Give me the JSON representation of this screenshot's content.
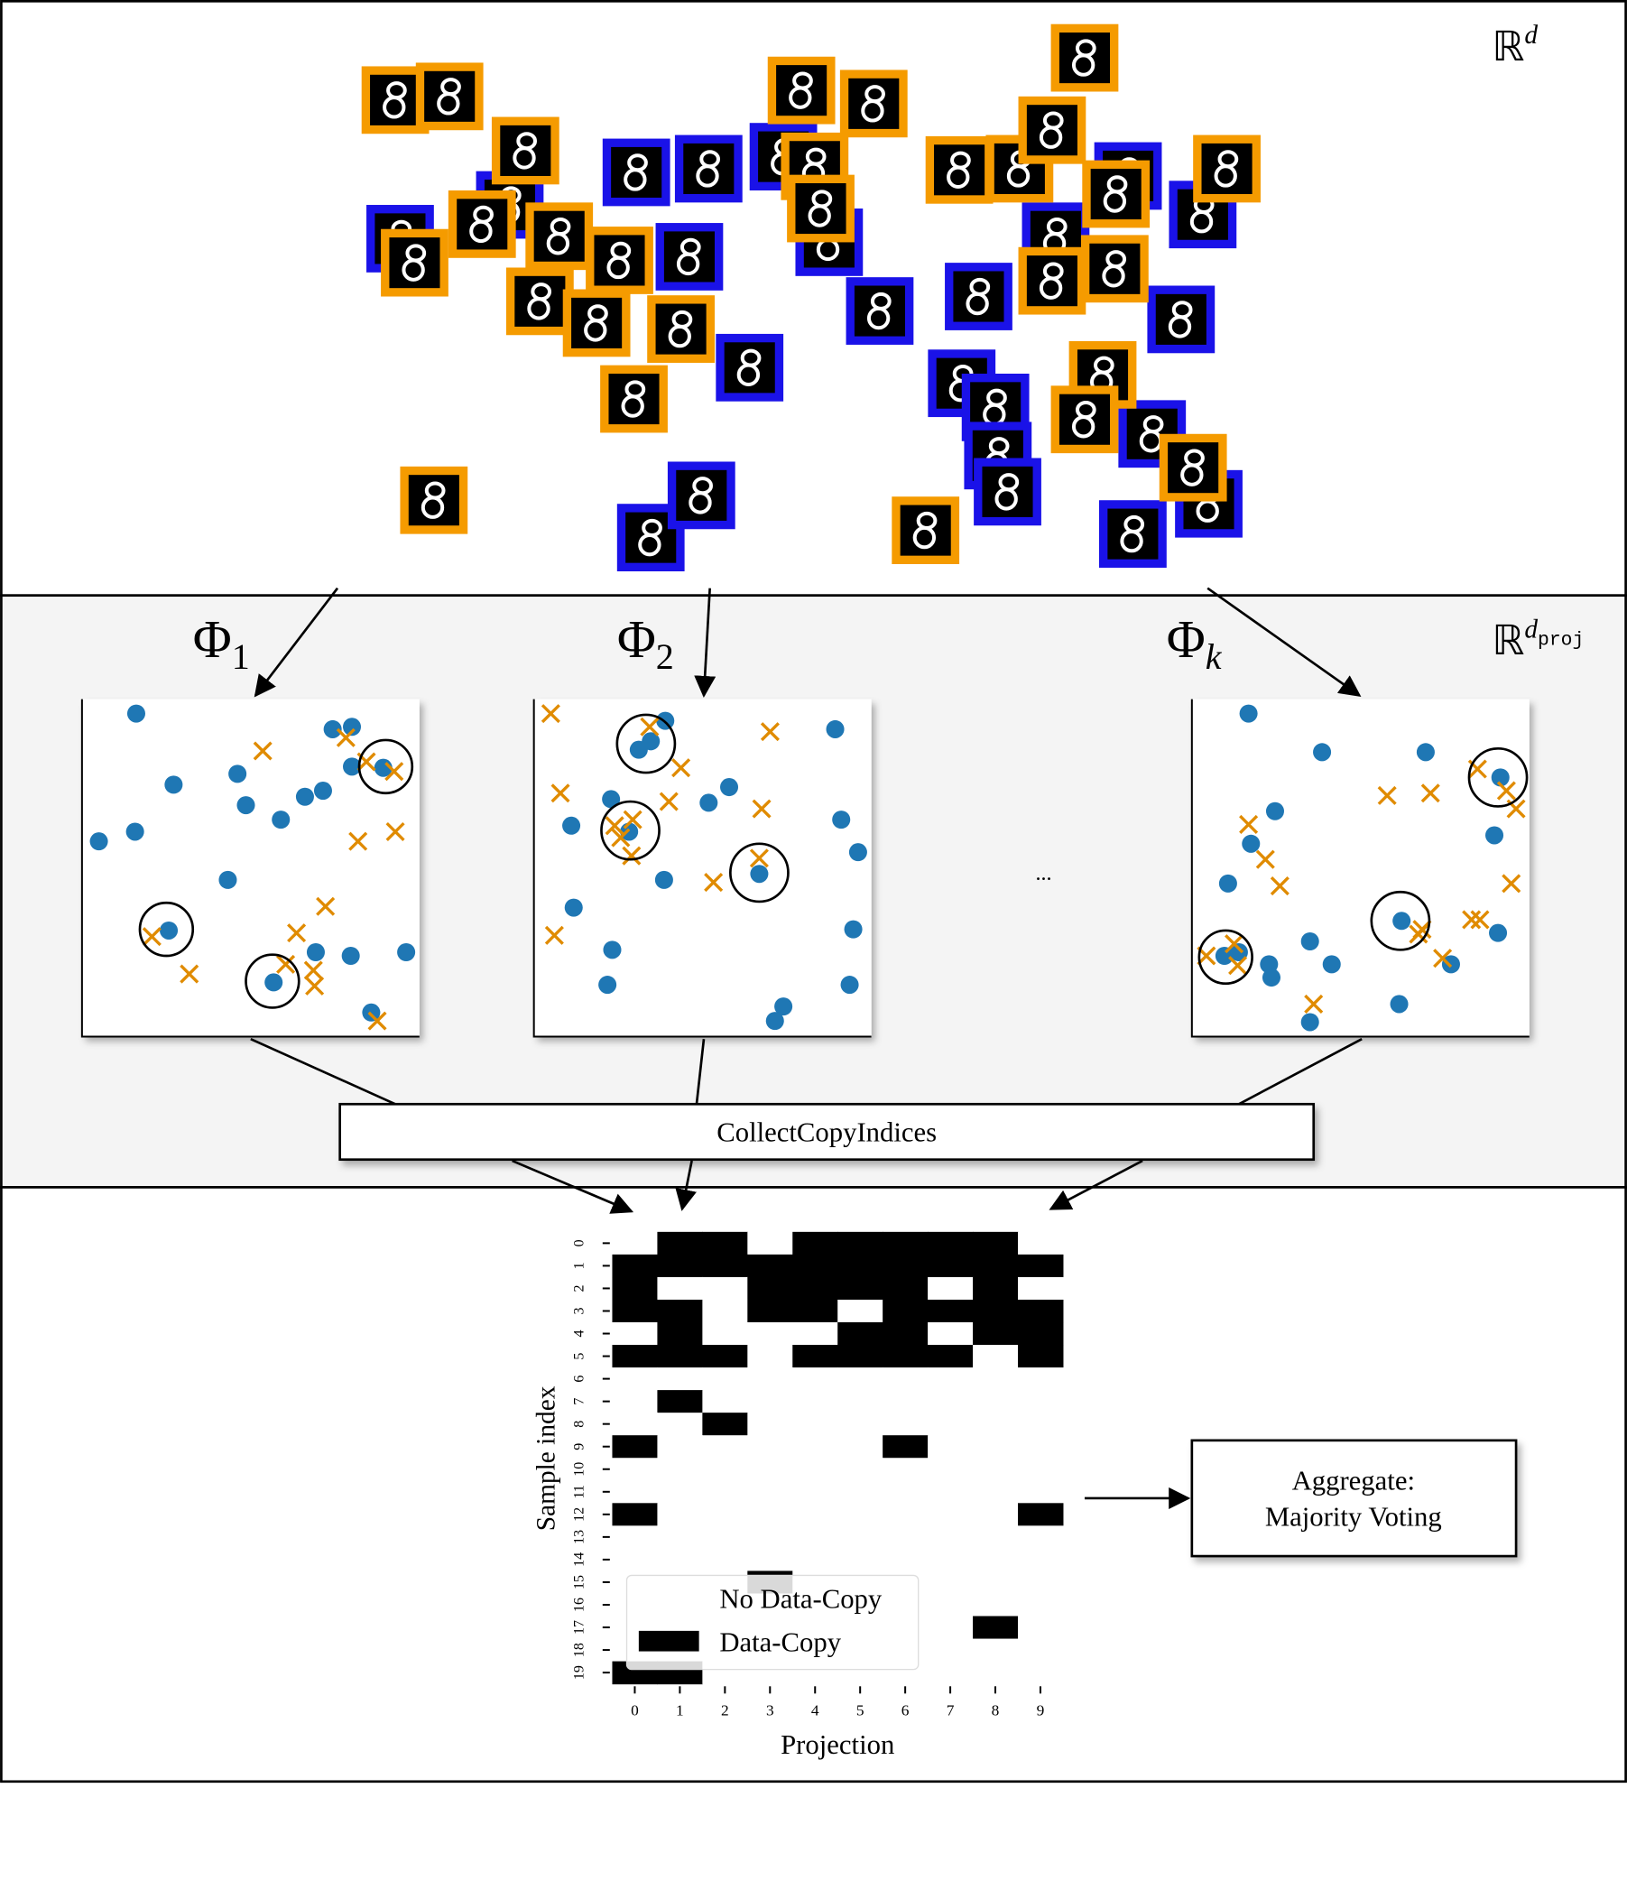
{
  "spaces": {
    "data_space": {
      "base": "ℝ",
      "sup": "d"
    },
    "proj_space": {
      "base": "ℝ",
      "sup": "d",
      "sub": "proj"
    }
  },
  "projections": [
    {
      "symbol": "Φ",
      "sub": "1"
    },
    {
      "symbol": "Φ",
      "sub": "2"
    },
    {
      "symbol": "Φ",
      "sub": "k"
    }
  ],
  "ellipsis": "...",
  "collect_box": "CollectCopyIndices",
  "heatmap": {
    "ylabel": "Sample index",
    "xlabel": "Projection",
    "xticks": [
      0,
      1,
      2,
      3,
      4,
      5,
      6,
      7,
      8,
      9
    ],
    "yticks": [
      0,
      1,
      2,
      3,
      4,
      5,
      6,
      7,
      8,
      9,
      10,
      11,
      12,
      13,
      14,
      15,
      16,
      17,
      18,
      19
    ],
    "matrix": [
      [
        0,
        1,
        1,
        0,
        1,
        1,
        1,
        1,
        1,
        0
      ],
      [
        1,
        1,
        1,
        1,
        1,
        1,
        1,
        1,
        1,
        1
      ],
      [
        1,
        0,
        0,
        1,
        1,
        1,
        1,
        0,
        1,
        0
      ],
      [
        1,
        1,
        0,
        1,
        1,
        0,
        1,
        1,
        1,
        1
      ],
      [
        0,
        1,
        0,
        0,
        0,
        1,
        1,
        0,
        1,
        1
      ],
      [
        1,
        1,
        1,
        0,
        1,
        1,
        1,
        1,
        0,
        1
      ],
      [
        0,
        0,
        0,
        0,
        0,
        0,
        0,
        0,
        0,
        0
      ],
      [
        0,
        1,
        0,
        0,
        0,
        0,
        0,
        0,
        0,
        0
      ],
      [
        0,
        0,
        1,
        0,
        0,
        0,
        0,
        0,
        0,
        0
      ],
      [
        1,
        0,
        0,
        0,
        0,
        0,
        1,
        0,
        0,
        0
      ],
      [
        0,
        0,
        0,
        0,
        0,
        0,
        0,
        0,
        0,
        0
      ],
      [
        0,
        0,
        0,
        0,
        0,
        0,
        0,
        0,
        0,
        0
      ],
      [
        1,
        0,
        0,
        0,
        0,
        0,
        0,
        0,
        0,
        1
      ],
      [
        0,
        0,
        0,
        0,
        0,
        0,
        0,
        0,
        0,
        0
      ],
      [
        0,
        0,
        0,
        0,
        0,
        0,
        0,
        0,
        0,
        0
      ],
      [
        0,
        0,
        0,
        1,
        0,
        0,
        0,
        0,
        0,
        0
      ],
      [
        0,
        0,
        0,
        0,
        0,
        0,
        0,
        0,
        0,
        0
      ],
      [
        0,
        0,
        0,
        0,
        0,
        0,
        0,
        0,
        1,
        0
      ],
      [
        0,
        0,
        0,
        0,
        0,
        0,
        0,
        0,
        0,
        0
      ],
      [
        1,
        1,
        0,
        0,
        0,
        0,
        0,
        0,
        0,
        0
      ]
    ],
    "legend": [
      "No Data-Copy",
      "Data-Copy"
    ]
  },
  "aggregate": [
    "Aggregate:",
    "Majority Voting"
  ]
}
